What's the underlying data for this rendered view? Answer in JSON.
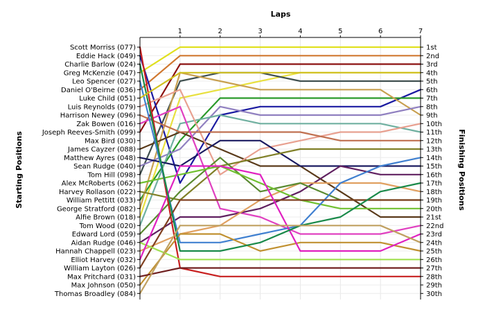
{
  "chart_data": {
    "type": "line",
    "title": "",
    "xlabel": "Laps",
    "ylabel_left": "Starting Positions",
    "ylabel_right": "Finishing Positions",
    "x": [
      0,
      1,
      2,
      3,
      4,
      5,
      6,
      7
    ],
    "x_tick_labels": [
      "1",
      "2",
      "3",
      "4",
      "5",
      "6",
      "7"
    ],
    "ylim": [
      1,
      30
    ],
    "y_inverted": true,
    "grid": true,
    "start_labels": [
      "Scott Morriss (077)",
      "Eddie Hack (049)",
      "Charlie Barlow (024)",
      "Greg McKenzie (047)",
      "Leo Spencer (027)",
      "Daniel O'Beirne (036)",
      "Luke Child (051)",
      "Luis Reynolds (079)",
      "Harrison Newey (096)",
      "Zak Bowen (016)",
      "Joseph Reeves-Smith (099)",
      "Max Bird (030)",
      "James Cayzer (088)",
      "Matthew Ayres (048)",
      "Sean Rudge (040)",
      "Tom Hill (098)",
      "Alex McRoberts (062)",
      "Harvey Rollason (022)",
      "William Pettitt (033)",
      "George Stratford (082)",
      "Alfie Brown (018)",
      "Tom Wood (020)",
      "Edward Lord (059)",
      "Aidan Rudge (046)",
      "Hannah Chappell (023)",
      "Elliot Harvey (032)",
      "William Layton (026)",
      "Max Pritchard (031)",
      "Max Johnson (050)",
      "Thomas Broadley (084)"
    ],
    "finish_labels": [
      "1st",
      "2nd",
      "3rd",
      "4th",
      "5th",
      "6th",
      "7th",
      "8th",
      "9th",
      "10th",
      "11th",
      "12th",
      "13th",
      "14th",
      "15th",
      "16th",
      "17th",
      "18th",
      "19th",
      "20th",
      "21st",
      "22nd",
      "23rd",
      "24th",
      "25th",
      "26th",
      "27th",
      "28th",
      "29th",
      "30th"
    ],
    "series": [
      {
        "color": "#e0e020",
        "positions": [
          4,
          1,
          1,
          1,
          1,
          1,
          1,
          1
        ]
      },
      {
        "color": "#d07830",
        "positions": [
          6,
          2,
          2,
          2,
          2,
          2,
          2,
          2
        ]
      },
      {
        "color": "#8b1010",
        "positions": [
          11,
          3,
          3,
          3,
          3,
          3,
          3,
          3
        ]
      },
      {
        "color": "#e8e040",
        "positions": [
          21,
          7,
          6,
          5,
          4,
          4,
          4,
          4
        ]
      },
      {
        "color": "#405050",
        "positions": [
          16,
          5,
          4,
          4,
          5,
          5,
          5,
          5
        ]
      },
      {
        "color": "#1a1aa0",
        "positions": [
          2,
          17,
          9,
          8,
          8,
          8,
          8,
          6
        ]
      },
      {
        "color": "#2a9a2a",
        "positions": [
          19,
          12,
          7,
          7,
          7,
          7,
          7,
          7
        ]
      },
      {
        "color": "#c8a050",
        "positions": [
          20,
          4,
          5,
          6,
          6,
          6,
          6,
          9
        ]
      },
      {
        "color": "#9080c0",
        "positions": [
          15,
          13,
          8,
          9,
          9,
          9,
          9,
          8
        ]
      },
      {
        "color": "#70b0a0",
        "positions": [
          22,
          10,
          9,
          10,
          10,
          10,
          10,
          11
        ]
      },
      {
        "color": "#5a3a1a",
        "positions": [
          13,
          11,
          13,
          15,
          15,
          18,
          21,
          21
        ]
      },
      {
        "color": "#e8a090",
        "positions": [
          8,
          6,
          16,
          13,
          12,
          11,
          11,
          10
        ]
      },
      {
        "color": "#1a1a60",
        "positions": [
          14,
          15,
          12,
          12,
          15,
          15,
          15,
          15
        ]
      },
      {
        "color": "#c07050",
        "positions": [
          9,
          11,
          11,
          11,
          11,
          12,
          12,
          12
        ]
      },
      {
        "color": "#808028",
        "positions": [
          18,
          19,
          15,
          14,
          13,
          13,
          13,
          13
        ]
      },
      {
        "color": "#e040c0",
        "positions": [
          10,
          8,
          20,
          21,
          23,
          23,
          23,
          22
        ]
      },
      {
        "color": "#602060",
        "positions": [
          24,
          21,
          21,
          20,
          18,
          15,
          16,
          16
        ]
      },
      {
        "color": "#e0a060",
        "positions": [
          25,
          23,
          22,
          19,
          17,
          17,
          17,
          18
        ]
      },
      {
        "color": "#5a8a30",
        "positions": [
          23,
          18,
          14,
          18,
          17,
          19,
          19,
          19
        ]
      },
      {
        "color": "#70c030",
        "positions": [
          17,
          16,
          15,
          17,
          19,
          20,
          20,
          20
        ]
      },
      {
        "color": "#c82020",
        "positions": [
          1,
          27,
          28,
          28,
          28,
          28,
          28,
          28
        ]
      },
      {
        "color": "#4080d0",
        "positions": [
          5,
          24,
          24,
          23,
          22,
          17,
          15,
          14
        ]
      },
      {
        "color": "#804020",
        "positions": [
          27,
          19,
          19,
          19,
          19,
          19,
          19,
          19
        ]
      },
      {
        "color": "#c09030",
        "positions": [
          29,
          23,
          23,
          25,
          24,
          24,
          24,
          25
        ]
      },
      {
        "color": "#a0e050",
        "positions": [
          24,
          26,
          26,
          26,
          26,
          26,
          26,
          26
        ]
      },
      {
        "color": "#e020c0",
        "positions": [
          26,
          15,
          15,
          16,
          25,
          25,
          25,
          23
        ]
      },
      {
        "color": "#1a8a4a",
        "positions": [
          3,
          25,
          25,
          24,
          22,
          21,
          18,
          17
        ]
      },
      {
        "color": "#702020",
        "positions": [
          28,
          27,
          27,
          27,
          27,
          27,
          27,
          27
        ]
      },
      {
        "color": "#c0a060",
        "positions": [
          30,
          22,
          22,
          22,
          22,
          22,
          22,
          24
        ]
      },
      {
        "color": "#d0c020",
        "positions": [
          7,
          4,
          4,
          4,
          4,
          4,
          4,
          4
        ]
      }
    ]
  }
}
